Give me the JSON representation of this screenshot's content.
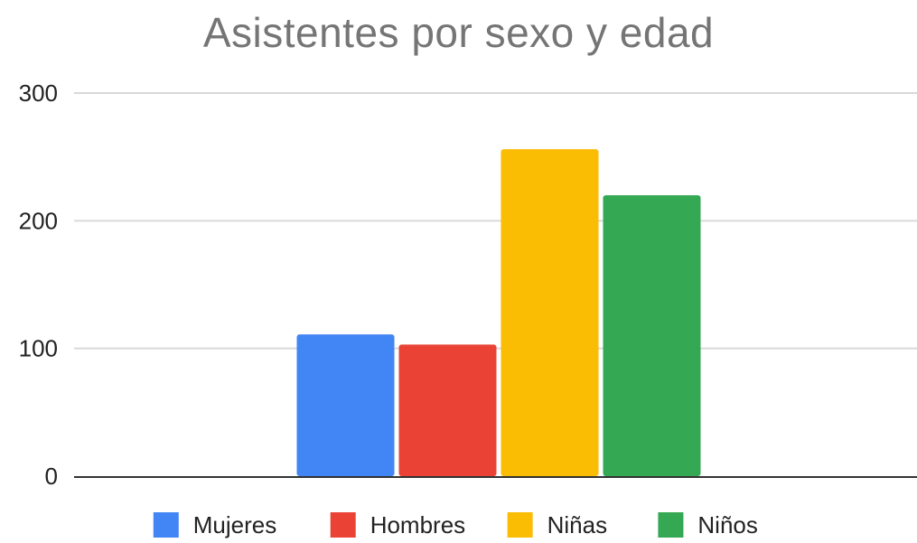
{
  "chart_data": {
    "type": "bar",
    "title": "Asistentes por sexo y edad",
    "xlabel": "",
    "ylabel": "",
    "ylim": [
      0,
      300
    ],
    "yticks": [
      0,
      100,
      200,
      300
    ],
    "categories": [
      ""
    ],
    "series": [
      {
        "name": "Mujeres",
        "values": [
          111
        ],
        "color": "#4285f4"
      },
      {
        "name": "Hombres",
        "values": [
          103
        ],
        "color": "#ea4335"
      },
      {
        "name": "Niñas",
        "values": [
          256
        ],
        "color": "#fbbc04"
      },
      {
        "name": "Niños",
        "values": [
          220
        ],
        "color": "#34a853"
      }
    ],
    "grid": true,
    "legend": "bottom"
  }
}
